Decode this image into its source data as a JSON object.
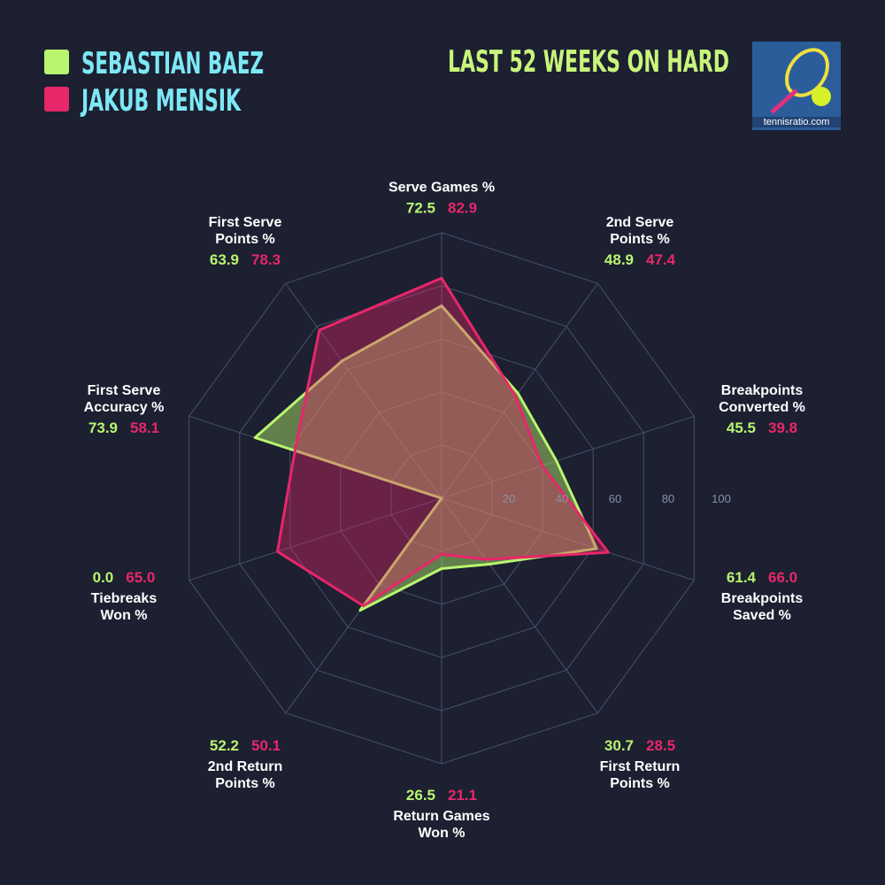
{
  "chart_data": {
    "type": "radar",
    "title": "LAST 52 WEEKS ON HARD",
    "logo_text": "tennisratio.com",
    "categories": [
      "Serve Games %",
      "2nd Serve\nPoints %",
      "Breakpoints\nConverted %",
      "Breakpoints\nSaved %",
      "First Return\nPoints %",
      "Return Games\nWon %",
      "2nd Return\nPoints %",
      "Tiebreaks\nWon %",
      "First Serve\nAccuracy %",
      "First Serve\nPoints %"
    ],
    "rlim": [
      0,
      100
    ],
    "rticks": [
      20,
      40,
      60,
      80,
      100
    ],
    "grid": true,
    "series": [
      {
        "name": "SEBASTIAN BAEZ",
        "color": "#b9f56f",
        "values": [
          72.5,
          48.9,
          45.5,
          61.4,
          30.7,
          26.5,
          52.2,
          0.0,
          73.9,
          63.9
        ],
        "value_labels": [
          "72.5",
          "48.9",
          "45.5",
          "61.4",
          "30.7",
          "26.5",
          "52.2",
          "0.0",
          "73.9",
          "63.9"
        ]
      },
      {
        "name": "JAKUB MENSIK",
        "color": "#e8266a",
        "values": [
          82.9,
          47.4,
          39.8,
          66.0,
          28.5,
          21.1,
          50.1,
          65.0,
          58.1,
          78.3
        ],
        "value_labels": [
          "82.9",
          "47.4",
          "39.8",
          "66.0",
          "28.5",
          "21.1",
          "50.1",
          "65.0",
          "58.1",
          "78.3"
        ]
      }
    ]
  }
}
